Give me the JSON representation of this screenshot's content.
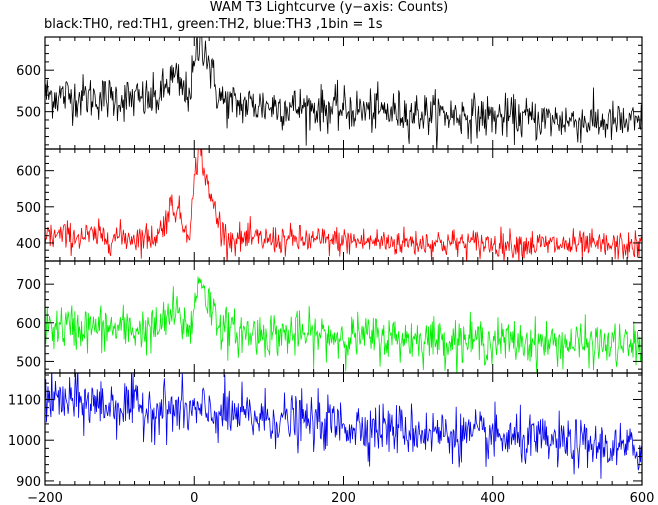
{
  "title": "WAM T3 Lightcurve (y−axis: Counts)",
  "subtitle": "black:TH0, red:TH1, green:TH2, blue:TH3 ,1bin = 1s",
  "chart_data": {
    "type": "line",
    "x_range": [
      -200,
      600
    ],
    "x_ticks": [
      -200,
      0,
      200,
      400,
      600
    ],
    "x_tick_labels": [
      "−200",
      "0",
      "200",
      "400",
      "600"
    ],
    "bin_seconds": 1,
    "grid": false,
    "panels": [
      {
        "name": "TH0",
        "color": "#000000",
        "ylim": [
          410,
          680
        ],
        "y_ticks": [
          500,
          600
        ],
        "y_tick_labels": [
          "500",
          "600"
        ],
        "profile": {
          "baseline_start": 540,
          "baseline_end": 470,
          "noise": 25,
          "peaks": [
            {
              "center": -28,
              "height": 55,
              "width": 10
            },
            {
              "center": 8,
              "height": 110,
              "width": 8
            },
            {
              "center": 18,
              "height": 60,
              "width": 10
            }
          ]
        }
      },
      {
        "name": "TH1",
        "color": "#ff0000",
        "ylim": [
          350,
          660
        ],
        "y_ticks": [
          400,
          500,
          600
        ],
        "y_tick_labels": [
          "400",
          "500",
          "600"
        ],
        "profile": {
          "baseline_start": 420,
          "baseline_end": 390,
          "noise": 20,
          "peaks": [
            {
              "center": -28,
              "height": 90,
              "width": 10
            },
            {
              "center": 6,
              "height": 210,
              "width": 6
            },
            {
              "center": 20,
              "height": 110,
              "width": 10
            }
          ]
        }
      },
      {
        "name": "TH2",
        "color": "#00ee00",
        "ylim": [
          470,
          760
        ],
        "y_ticks": [
          500,
          600,
          700
        ],
        "y_tick_labels": [
          "500",
          "600",
          "700"
        ],
        "profile": {
          "baseline_start": 590,
          "baseline_end": 540,
          "noise": 28,
          "peaks": [
            {
              "center": -28,
              "height": 45,
              "width": 10
            },
            {
              "center": 8,
              "height": 120,
              "width": 6
            },
            {
              "center": 22,
              "height": 55,
              "width": 10
            }
          ]
        }
      },
      {
        "name": "TH3",
        "color": "#0000ee",
        "ylim": [
          890,
          1165
        ],
        "y_ticks": [
          900,
          1000,
          1100
        ],
        "y_tick_labels": [
          "900",
          "1000",
          "1100"
        ],
        "profile": {
          "baseline_start": 1100,
          "baseline_end": 975,
          "noise": 30,
          "peaks": []
        }
      }
    ]
  }
}
